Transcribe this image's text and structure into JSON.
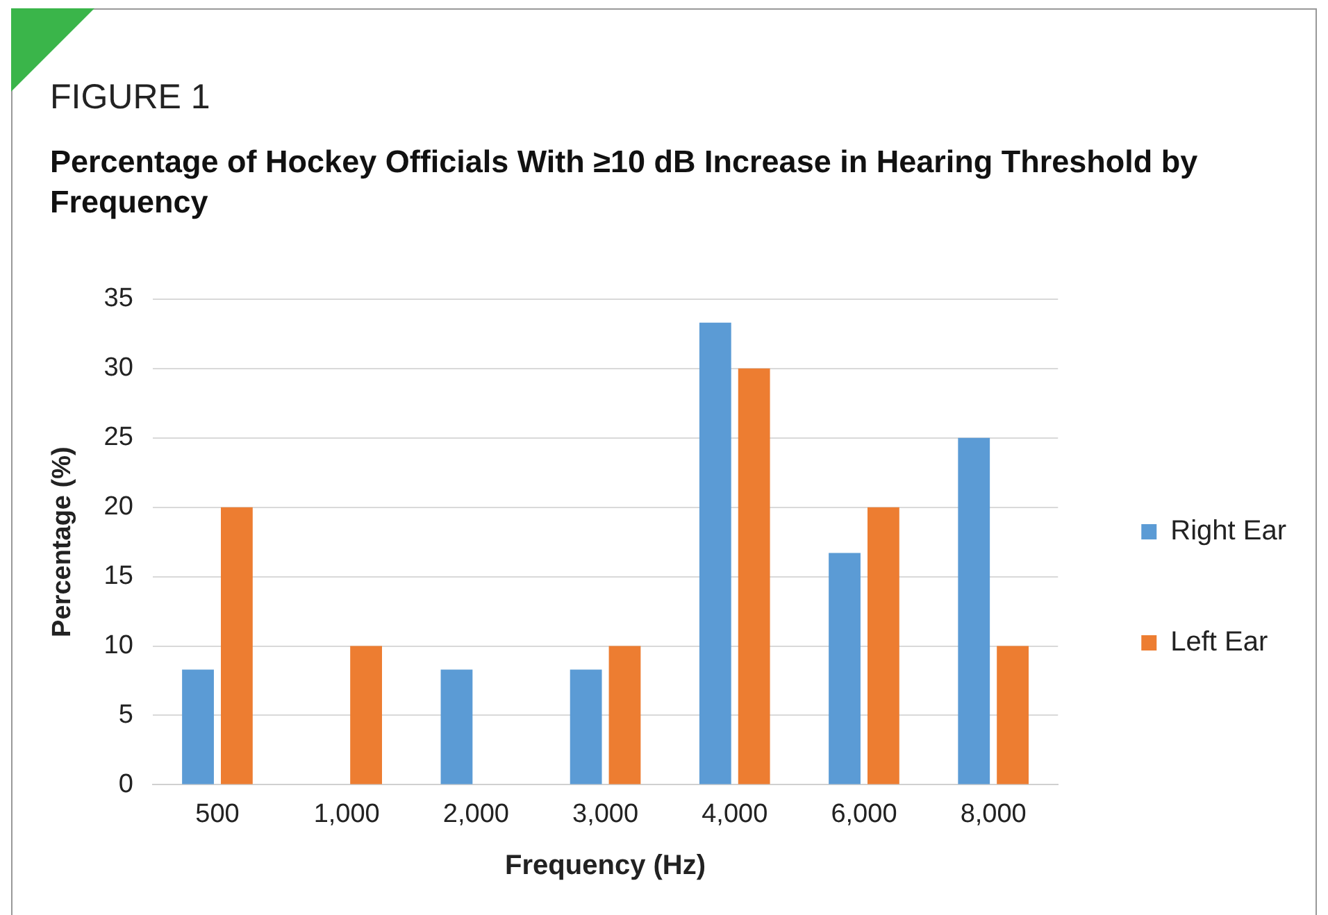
{
  "chart_data": {
    "type": "bar",
    "title": "Percentage of Hockey Officials With ≥10 dB Increase in Hearing Threshold by Frequency",
    "annotations": [
      "FIGURE 1"
    ],
    "xlabel": "Frequency (Hz)",
    "ylabel": "Percentage (%)",
    "categories": [
      "500",
      "1,000",
      "2,000",
      "3,000",
      "4,000",
      "6,000",
      "8,000"
    ],
    "series": [
      {
        "name": "Right Ear",
        "color": "#5b9bd5",
        "values": [
          8.3,
          0,
          8.3,
          8.3,
          33.3,
          16.7,
          25
        ]
      },
      {
        "name": "Left Ear",
        "color": "#ed7d31",
        "values": [
          20,
          10,
          0,
          10,
          30,
          20,
          10
        ]
      }
    ],
    "ylim": [
      0,
      35
    ],
    "yticks": [
      0,
      5,
      10,
      15,
      20,
      25,
      30,
      35
    ],
    "grid": "y",
    "legend": "right"
  }
}
